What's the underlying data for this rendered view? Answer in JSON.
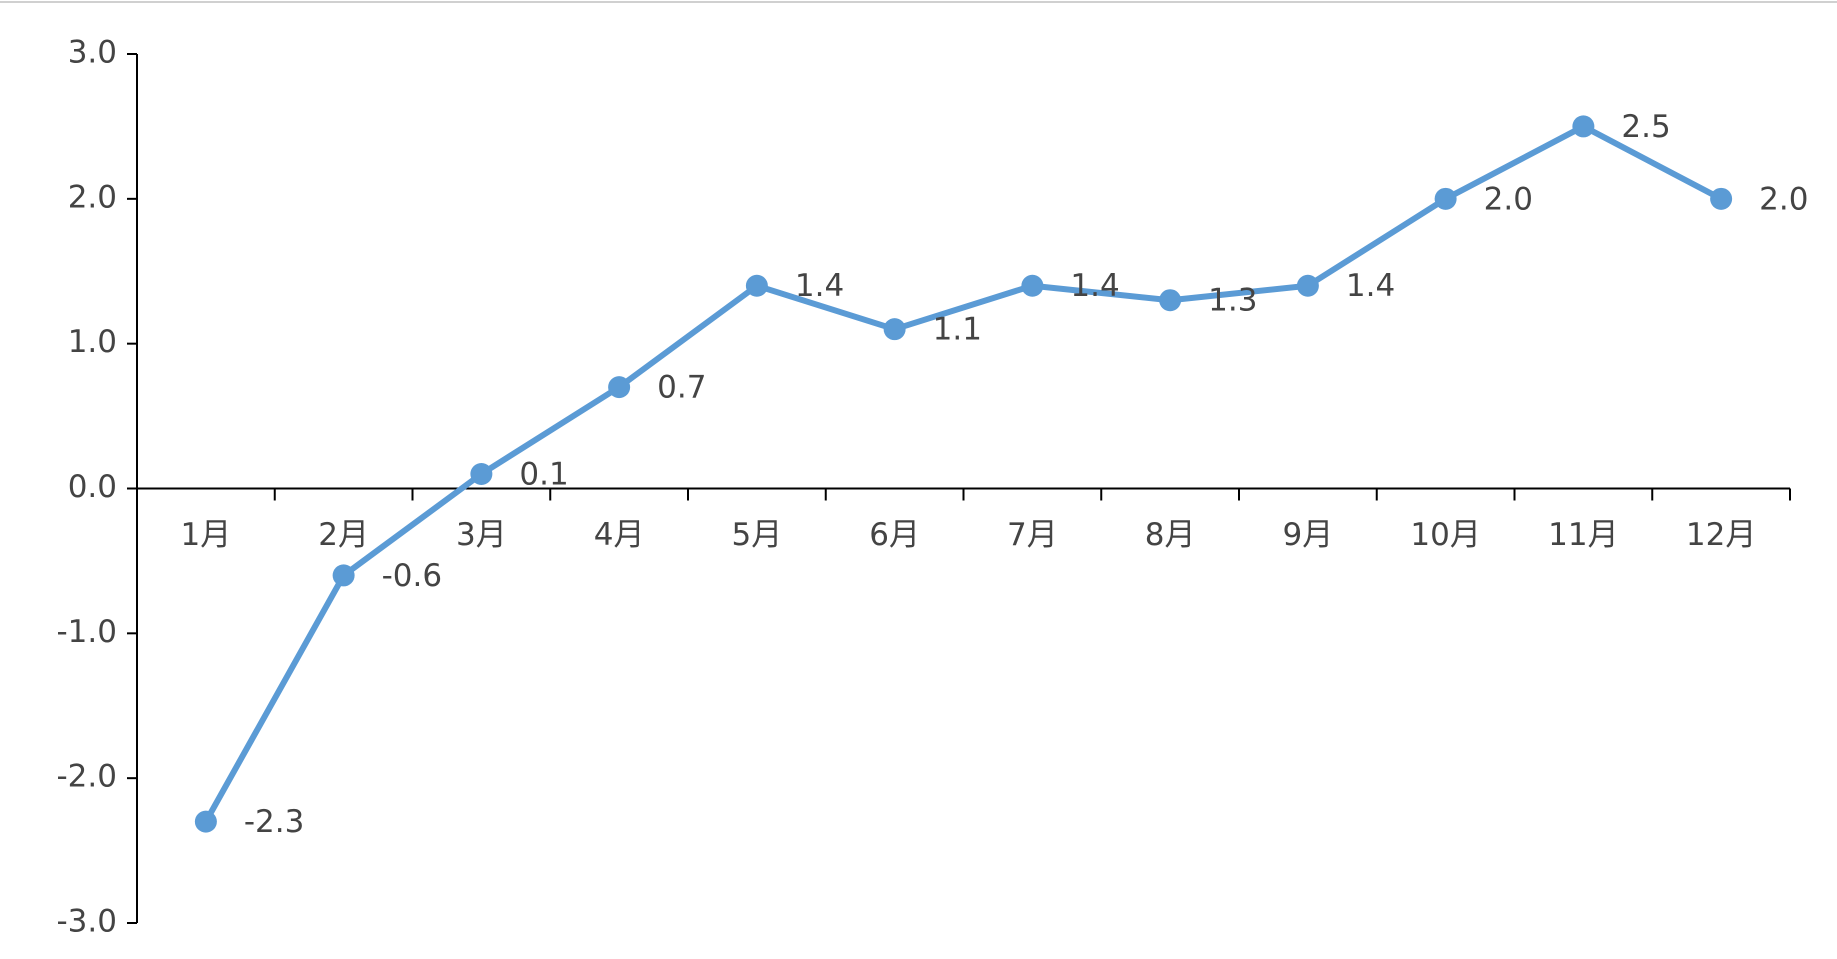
{
  "chart_data": {
    "type": "line",
    "categories": [
      "1月",
      "2月",
      "3月",
      "4月",
      "5月",
      "6月",
      "7月",
      "8月",
      "9月",
      "10月",
      "11月",
      "12月"
    ],
    "series": [
      {
        "color": "#5b9bd5",
        "values": [
          -2.3,
          -0.6,
          0.1,
          0.7,
          1.4,
          1.1,
          1.4,
          1.3,
          1.4,
          2.0,
          2.5,
          2.0
        ],
        "value_labels": [
          "-2.3",
          "-0.6",
          "0.1",
          "0.7",
          "1.4",
          "1.1",
          "1.4",
          "1.3",
          "1.4",
          "2.0",
          "2.5",
          "2.0"
        ]
      }
    ],
    "ylim": [
      -3,
      3
    ],
    "yticks": [
      {
        "value": -3,
        "label": "-3.0"
      },
      {
        "value": -2,
        "label": "-2.0"
      },
      {
        "value": -1,
        "label": "-1.0"
      },
      {
        "value": 0,
        "label": "0.0"
      },
      {
        "value": 1,
        "label": "1.0"
      },
      {
        "value": 2,
        "label": "2.0"
      },
      {
        "value": 3,
        "label": "3.0"
      }
    ],
    "grid": false
  }
}
